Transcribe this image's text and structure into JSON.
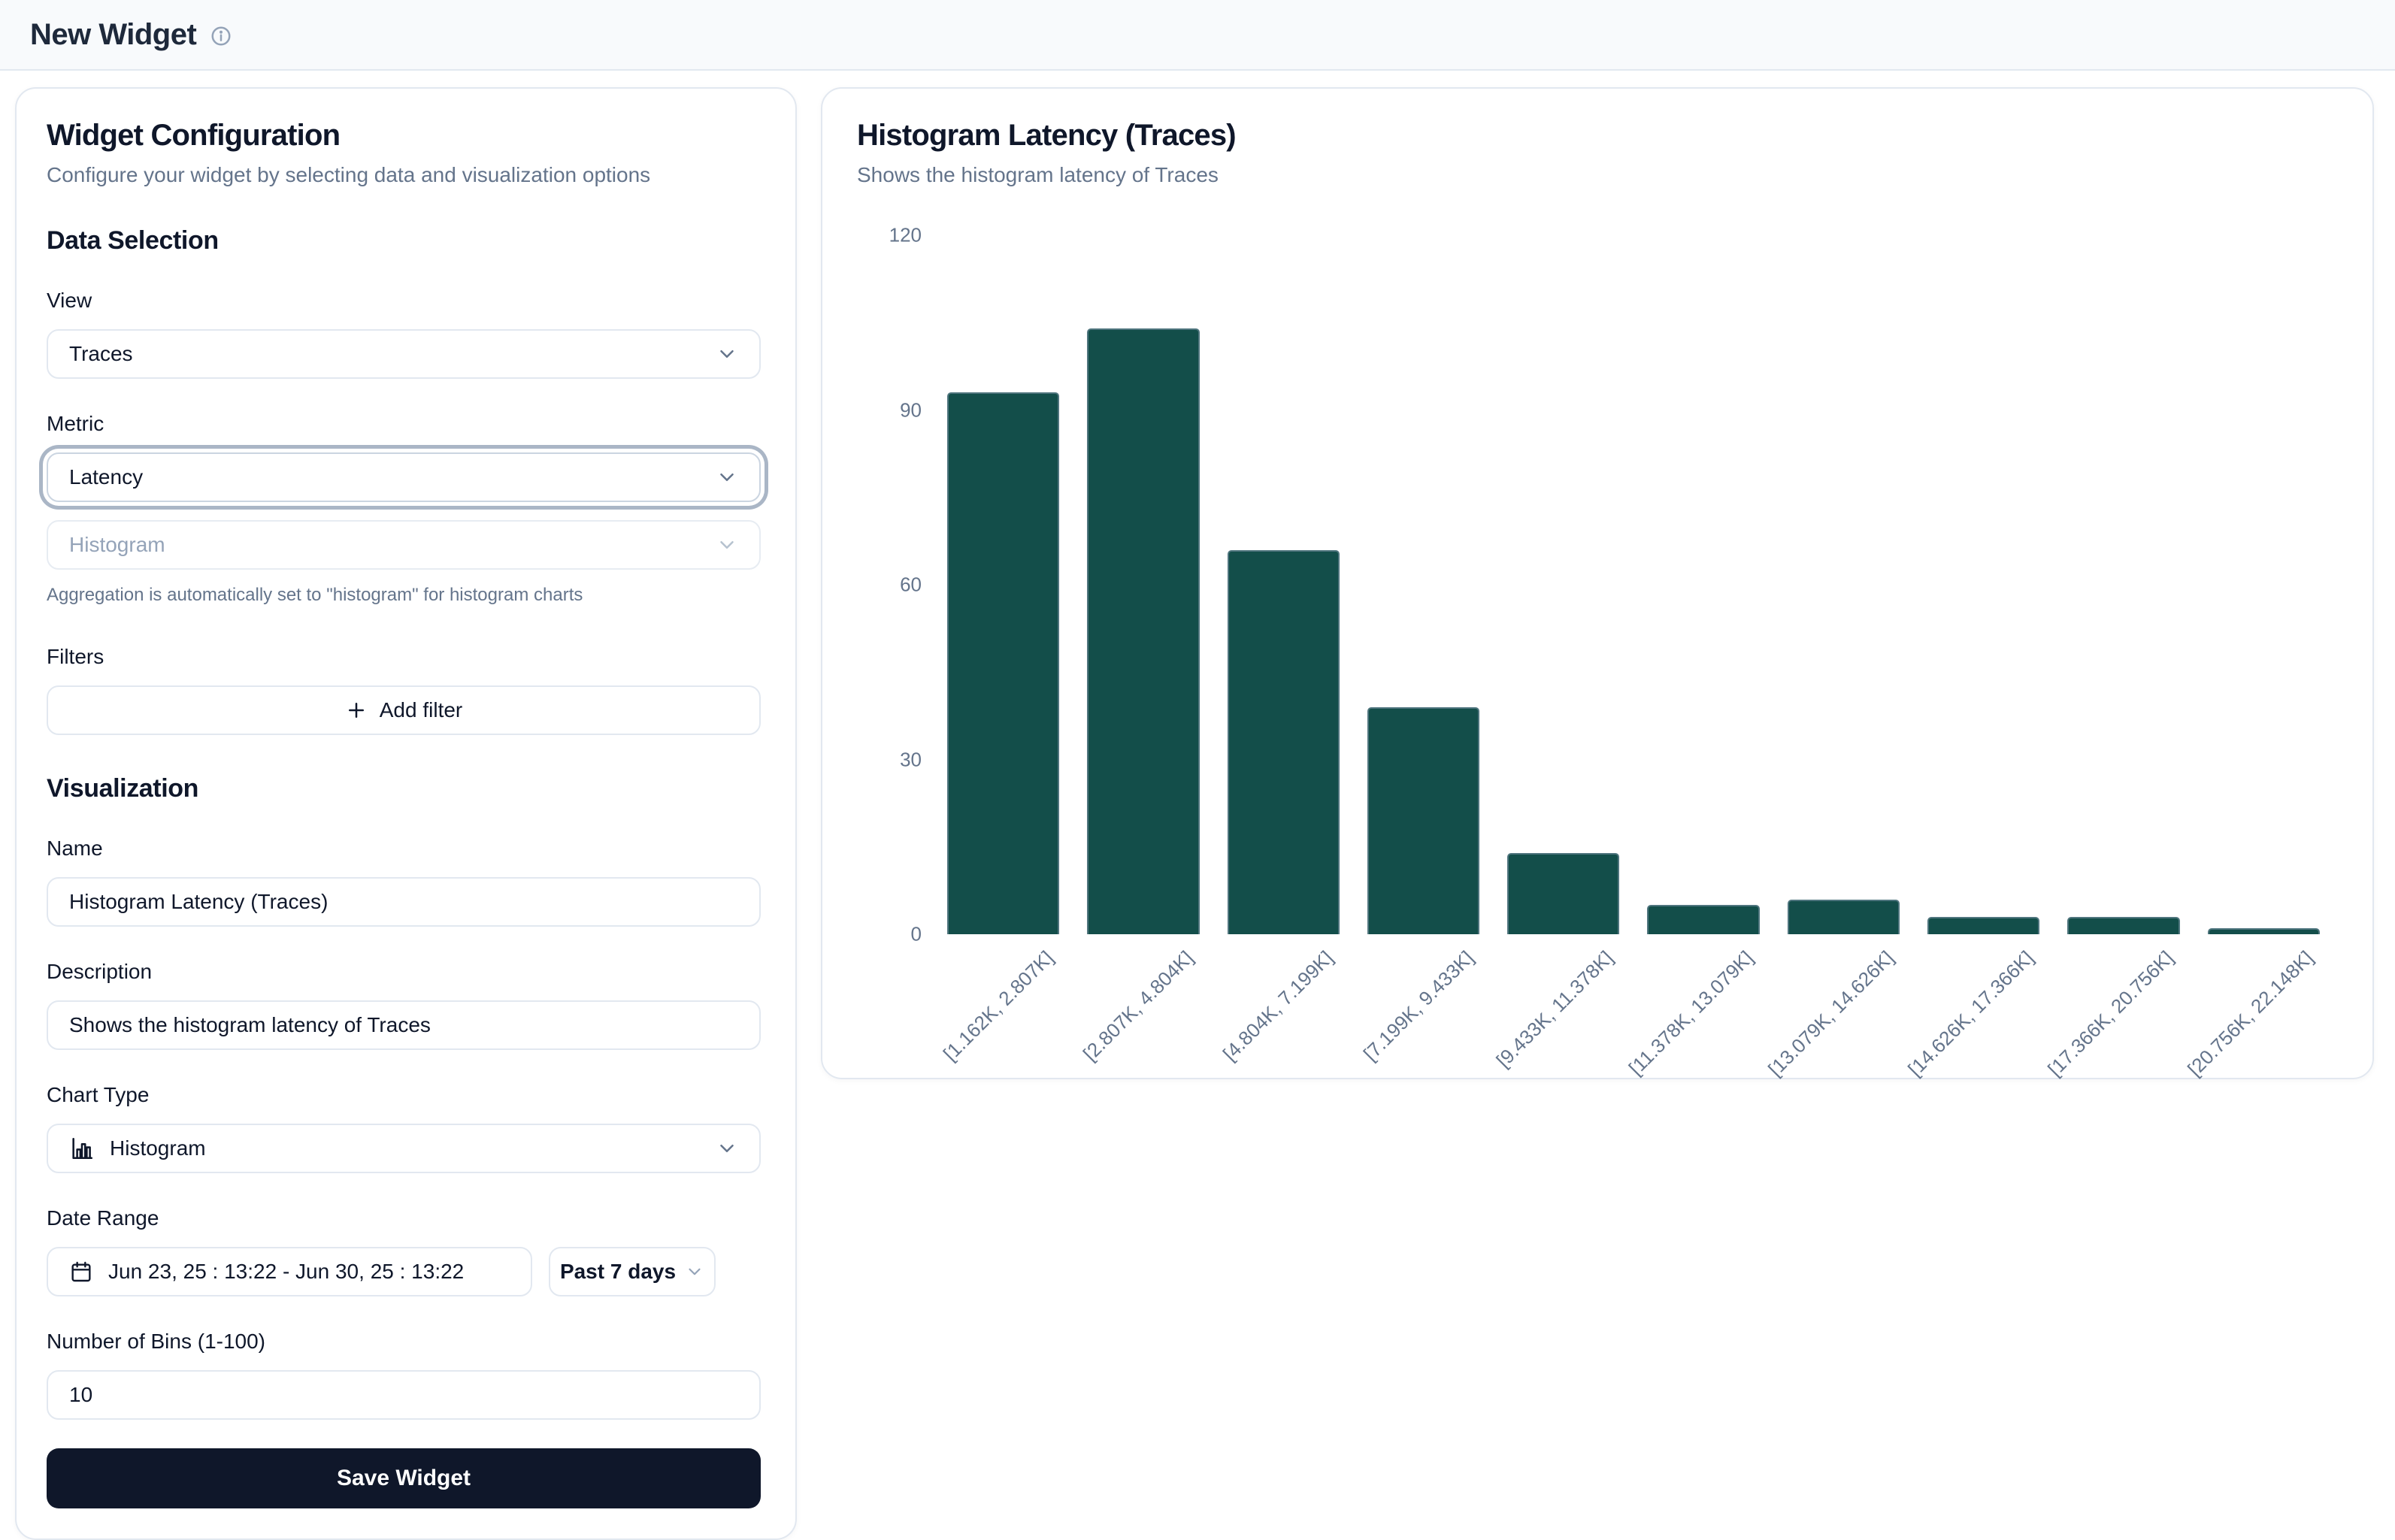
{
  "header": {
    "title": "New Widget"
  },
  "config": {
    "title": "Widget Configuration",
    "subtitle": "Configure your widget by selecting data and visualization options",
    "data_selection": {
      "heading": "Data Selection",
      "view_label": "View",
      "view_value": "Traces",
      "metric_label": "Metric",
      "metric_value": "Latency",
      "aggregation_value": "Histogram",
      "aggregation_note": "Aggregation is automatically set to \"histogram\" for histogram charts",
      "filters_label": "Filters",
      "add_filter_label": "Add filter"
    },
    "visualization": {
      "heading": "Visualization",
      "name_label": "Name",
      "name_value": "Histogram Latency (Traces)",
      "description_label": "Description",
      "description_value": "Shows the histogram latency of Traces",
      "chart_type_label": "Chart Type",
      "chart_type_value": "Histogram",
      "date_range_label": "Date Range",
      "date_range_value": "Jun 23, 25 : 13:22 - Jun 30, 25 : 13:22",
      "date_preset_value": "Past 7 days",
      "bins_label": "Number of Bins (1-100)",
      "bins_value": "10"
    },
    "save_label": "Save Widget"
  },
  "chart_panel": {
    "title": "Histogram Latency (Traces)",
    "subtitle": "Shows the histogram latency of Traces"
  },
  "chart_data": {
    "type": "bar",
    "title": "Histogram Latency (Traces)",
    "categories": [
      "[1.162K, 2.807K]",
      "[2.807K, 4.804K]",
      "[4.804K, 7.199K]",
      "[7.199K, 9.433K]",
      "[9.433K, 11.378K]",
      "[11.378K, 13.079K]",
      "[13.079K, 14.626K]",
      "[14.626K, 17.366K]",
      "[17.366K, 20.756K]",
      "[20.756K, 22.148K]"
    ],
    "values": [
      93,
      104,
      66,
      39,
      14,
      5,
      6,
      3,
      3,
      1
    ],
    "xlabel": "",
    "ylabel": "",
    "ylim": [
      0,
      120
    ],
    "yticks": [
      0,
      30,
      60,
      90,
      120
    ],
    "grid": false,
    "legend": false,
    "bar_color": "#134e4a"
  },
  "colors": {
    "accent_bar": "#134e4a",
    "save_button": "#0f172a",
    "border": "#e2e8f0",
    "muted_text": "#64748b",
    "header_bg": "#f8fafc"
  }
}
